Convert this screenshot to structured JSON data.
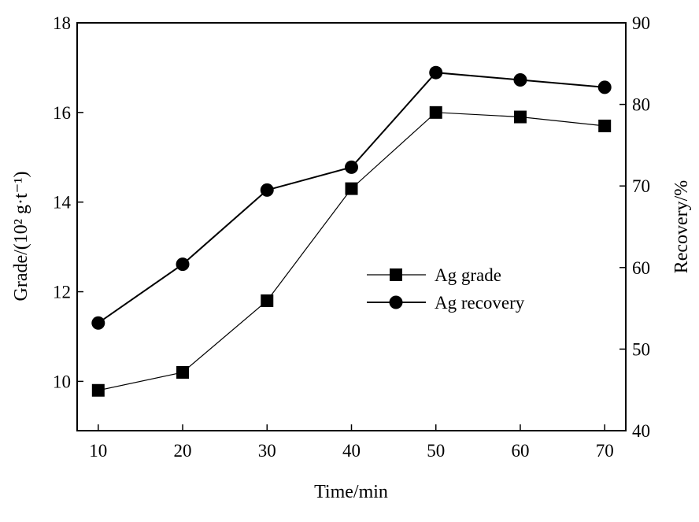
{
  "chart_data": {
    "type": "line",
    "title": "",
    "xlabel": "Time/min",
    "ylabel_left": "Grade/(10² g·t⁻¹)",
    "ylabel_right": "Recovery/%",
    "x": [
      10,
      20,
      30,
      40,
      50,
      60,
      70
    ],
    "x_ticks": [
      "10",
      "20",
      "30",
      "40",
      "50",
      "60",
      "70"
    ],
    "y_left_ticks": [
      "10",
      "12",
      "14",
      "16",
      "18"
    ],
    "y_right_ticks": [
      "40",
      "50",
      "60",
      "70",
      "80",
      "90"
    ],
    "y_left_range": [
      8.9,
      18
    ],
    "y_right_range": [
      40,
      90
    ],
    "xlim": [
      7.5,
      72.5
    ],
    "grid": false,
    "legend_position": "center-right",
    "series": [
      {
        "name": "Ag grade",
        "axis": "left",
        "marker": "square",
        "values": [
          9.8,
          10.2,
          11.8,
          14.3,
          16.0,
          15.9,
          15.7
        ]
      },
      {
        "name": "Ag recovery",
        "axis": "right",
        "marker": "circle",
        "values": [
          53.2,
          60.4,
          69.5,
          72.3,
          83.9,
          83.0,
          82.1
        ]
      }
    ]
  }
}
